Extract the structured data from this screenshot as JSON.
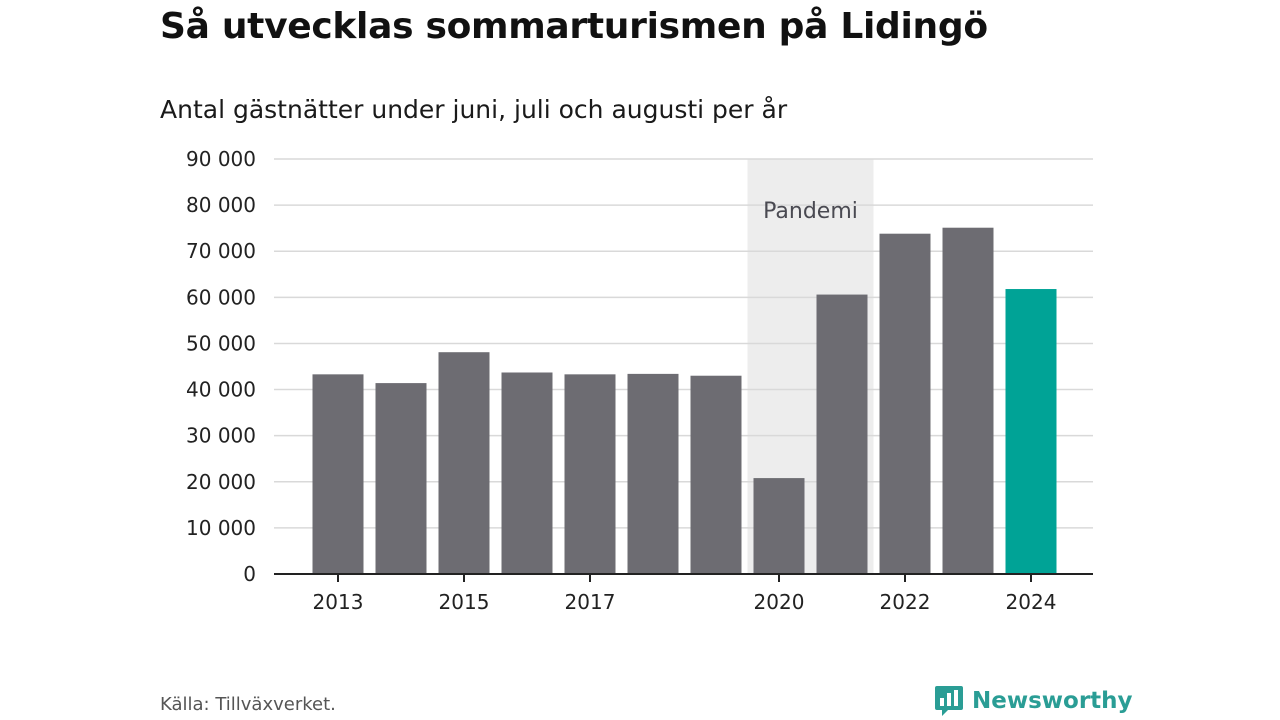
{
  "header": {
    "title": "Så utvecklas sommarturismen på Lidingö",
    "subtitle": "Antal gästnätter under juni, juli och augusti per år"
  },
  "footer": {
    "source": "Källa: Tillväxverket.",
    "brand": "Newsworthy"
  },
  "colors": {
    "bar": "#6d6c72",
    "highlight": "#00a396",
    "shade": "#ededed",
    "grid": "#d9d9d9",
    "axis": "#222222",
    "brand": "#2a9d95"
  },
  "icons": {
    "brand_logo": "newsworthy-logo-icon"
  },
  "chart_data": {
    "type": "bar",
    "categories": [
      "2013",
      "2014",
      "2015",
      "2016",
      "2017",
      "2018",
      "2019",
      "2020",
      "2021",
      "2022",
      "2023",
      "2024"
    ],
    "values": [
      43300,
      41400,
      48100,
      43700,
      43300,
      43400,
      43000,
      20800,
      60600,
      73800,
      75100,
      61800
    ],
    "highlight_category": "2024",
    "x_tick_labels": [
      "2013",
      "2015",
      "2017",
      "2020",
      "2022",
      "2024"
    ],
    "y_tick_labels": [
      "0",
      "10 000",
      "20 000",
      "30 000",
      "40 000",
      "50 000",
      "60 000",
      "70 000",
      "80 000",
      "90 000"
    ],
    "ylim": [
      0,
      90000
    ],
    "y_step": 10000,
    "grid": true,
    "annotation": {
      "label": "Pandemi",
      "from": "2020",
      "to": "2021"
    }
  }
}
